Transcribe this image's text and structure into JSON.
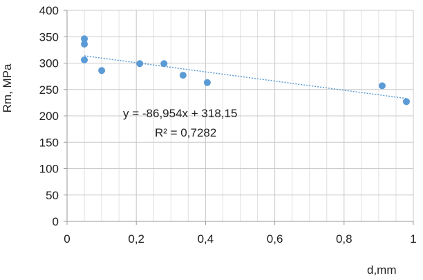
{
  "chart_data": {
    "type": "scatter",
    "xlabel": "d,mm",
    "ylabel": "Rm, MPa",
    "xlim": [
      0,
      1
    ],
    "ylim": [
      0,
      400
    ],
    "x_ticks": [
      0,
      0.2,
      0.4,
      0.6,
      0.8,
      1
    ],
    "x_tick_labels": [
      "0",
      "0,2",
      "0,4",
      "0,6",
      "0,8",
      "1"
    ],
    "x_minor_step": 0.05,
    "y_ticks": [
      0,
      50,
      100,
      150,
      200,
      250,
      300,
      350,
      400
    ],
    "y_tick_labels": [
      "0",
      "50",
      "100",
      "150",
      "200",
      "250",
      "300",
      "350",
      "400"
    ],
    "grid": true,
    "series": [
      {
        "color": "#5b9bd5",
        "x": [
          0.05,
          0.05,
          0.05,
          0.1,
          0.21,
          0.28,
          0.335,
          0.405,
          0.91,
          0.98
        ],
        "y": [
          346,
          336,
          306,
          286,
          299,
          299,
          277,
          263,
          257,
          227
        ]
      }
    ],
    "trendline": {
      "type": "linear",
      "slope": -86.954,
      "intercept": 318.15,
      "x_range": [
        0.05,
        0.98
      ],
      "color": "#5b9bd5",
      "equation": "y = -86,954x + 318,15",
      "r_squared": "R² = 0,7282"
    }
  }
}
